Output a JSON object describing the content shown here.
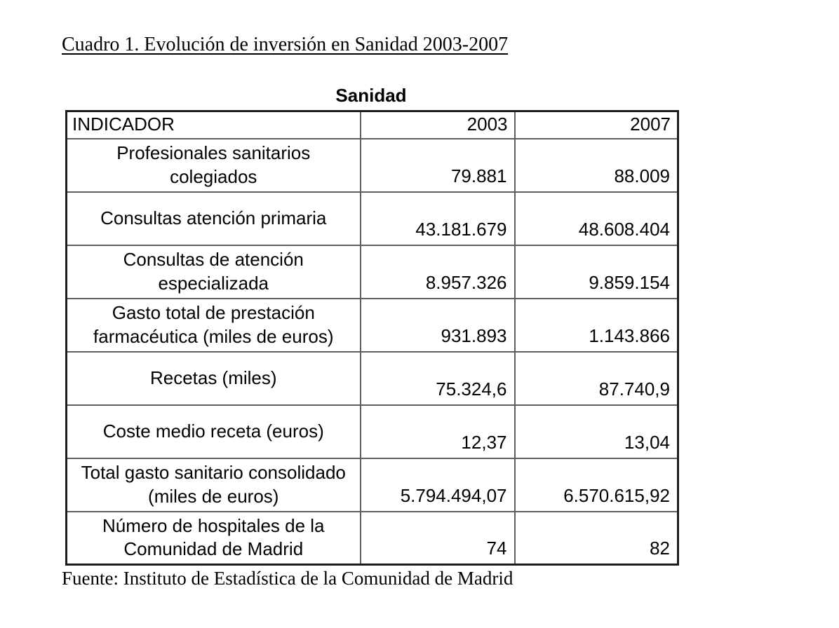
{
  "title": "Cuadro 1. Evolución de inversión en Sanidad 2003-2007",
  "table": {
    "caption": "Sanidad",
    "columns": {
      "indicator": "INDICADOR",
      "year1": "2003",
      "year2": "2007"
    },
    "rows": [
      {
        "indicator": "Profesionales sanitarios colegiados",
        "y2003": "79.881",
        "y2007": "88.009"
      },
      {
        "indicator": "Consultas atención primaria",
        "y2003": "43.181.679",
        "y2007": "48.608.404"
      },
      {
        "indicator": "Consultas de atención especializada",
        "y2003": "8.957.326",
        "y2007": "9.859.154"
      },
      {
        "indicator": "Gasto total de prestación farmacéutica (miles de euros)",
        "y2003": "931.893",
        "y2007": "1.143.866"
      },
      {
        "indicator": "Recetas (miles)",
        "y2003": "75.324,6",
        "y2007": "87.740,9"
      },
      {
        "indicator": "Coste medio receta (euros)",
        "y2003": "12,37",
        "y2007": "13,04"
      },
      {
        "indicator": "Total gasto sanitario consolidado (miles de euros)",
        "y2003": "5.794.494,07",
        "y2007": "6.570.615,92"
      },
      {
        "indicator": "Número de hospitales de la Comunidad de Madrid",
        "y2003": "74",
        "y2007": "82"
      }
    ]
  },
  "source": "Fuente: Instituto de Estadística de la Comunidad de Madrid",
  "colors": {
    "background": "#ffffff",
    "text": "#000000",
    "border_outer": "#1c1c1c",
    "border_inner": "#5f5f5f"
  }
}
